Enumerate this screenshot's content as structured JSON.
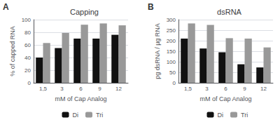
{
  "chart_data": [
    {
      "type": "bar",
      "title": "Capping",
      "annotations": [
        "A"
      ],
      "xlabel": "mM of Cap Analog",
      "ylabel": "% of capped RNA",
      "categories": [
        "1,5",
        "3",
        "6",
        "9",
        "12"
      ],
      "series": [
        {
          "name": "Di",
          "color": "#111111",
          "values": [
            40,
            55,
            70,
            70,
            76
          ]
        },
        {
          "name": "Tri",
          "color": "#999999",
          "values": [
            63,
            79,
            92,
            94,
            91
          ]
        }
      ],
      "ylim": [
        0,
        100
      ],
      "yticks": [
        0,
        20,
        40,
        60,
        80,
        100
      ],
      "grid": true,
      "legend": "bottom"
    },
    {
      "type": "bar",
      "title": "dsRNA",
      "annotations": [
        "B"
      ],
      "xlabel": "mM of Cap Analog",
      "ylabel": "pg dsRNA / µg RNA",
      "categories": [
        "1,5",
        "3",
        "6",
        "9",
        "12"
      ],
      "series": [
        {
          "name": "Di",
          "color": "#111111",
          "values": [
            210,
            163,
            145,
            88,
            73
          ]
        },
        {
          "name": "Tri",
          "color": "#999999",
          "values": [
            282,
            275,
            212,
            210,
            168
          ]
        }
      ],
      "ylim": [
        0,
        300
      ],
      "yticks": [
        0,
        50,
        100,
        150,
        200,
        250,
        300
      ],
      "grid": true,
      "legend": "bottom"
    }
  ]
}
